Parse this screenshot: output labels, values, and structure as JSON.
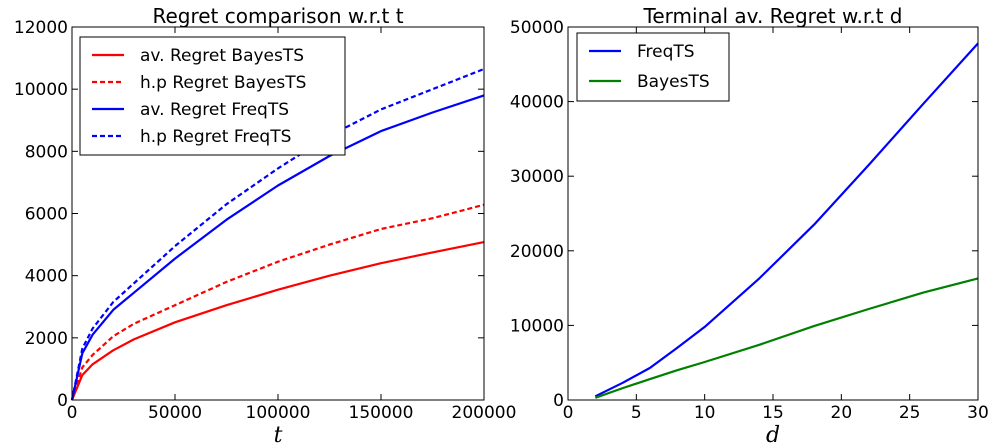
{
  "chart_data": [
    {
      "type": "line",
      "title": "Regret comparison w.r.t t",
      "xlabel": "t",
      "ylabel": "",
      "xlim": [
        0,
        200000
      ],
      "ylim": [
        0,
        12000
      ],
      "xticks": [
        "0",
        "50000",
        "100000",
        "150000",
        "200000"
      ],
      "yticks": [
        "0",
        "2000",
        "4000",
        "6000",
        "8000",
        "10000",
        "12000"
      ],
      "legend_position": "top-left",
      "grid": false,
      "x": [
        0,
        5000,
        10000,
        20000,
        30000,
        50000,
        75000,
        100000,
        125000,
        150000,
        175000,
        200000
      ],
      "series": [
        {
          "name": "av. Regret BayesTS",
          "color": "#ff0000",
          "dash": "solid",
          "values": [
            0,
            800,
            1150,
            1600,
            1950,
            2500,
            3050,
            3550,
            4000,
            4400,
            4750,
            5080
          ]
        },
        {
          "name": "h.p Regret BayesTS",
          "color": "#ff0000",
          "dash": "dashed",
          "values": [
            0,
            1050,
            1450,
            2050,
            2450,
            3050,
            3800,
            4450,
            5000,
            5500,
            5850,
            6280
          ]
        },
        {
          "name": "av. Regret FreqTS",
          "color": "#0000ff",
          "dash": "solid",
          "values": [
            0,
            1500,
            2100,
            2900,
            3450,
            4550,
            5800,
            6900,
            7850,
            8650,
            9250,
            9800
          ]
        },
        {
          "name": "h.p Regret FreqTS",
          "color": "#0000ff",
          "dash": "dashed",
          "values": [
            0,
            1650,
            2300,
            3150,
            3750,
            4950,
            6300,
            7450,
            8500,
            9350,
            10000,
            10650
          ]
        }
      ]
    },
    {
      "type": "line",
      "title": "Terminal av. Regret w.r.t d",
      "xlabel": "d",
      "ylabel": "",
      "xlim": [
        0,
        30
      ],
      "ylim": [
        0,
        50000
      ],
      "xticks": [
        "0",
        "5",
        "10",
        "15",
        "20",
        "25",
        "30"
      ],
      "yticks": [
        "0",
        "10000",
        "20000",
        "30000",
        "40000",
        "50000"
      ],
      "legend_position": "top-left",
      "grid": false,
      "x": [
        2,
        4,
        6,
        8,
        10,
        14,
        18,
        22,
        26,
        30
      ],
      "series": [
        {
          "name": "FreqTS",
          "color": "#0000ff",
          "dash": "solid",
          "values": [
            500,
            2300,
            4300,
            7000,
            9800,
            16300,
            23500,
            31500,
            39700,
            47800
          ]
        },
        {
          "name": "BayesTS",
          "color": "#008000",
          "dash": "solid",
          "values": [
            300,
            1600,
            2800,
            4000,
            5100,
            7400,
            9900,
            12200,
            14400,
            16300
          ]
        }
      ]
    }
  ]
}
